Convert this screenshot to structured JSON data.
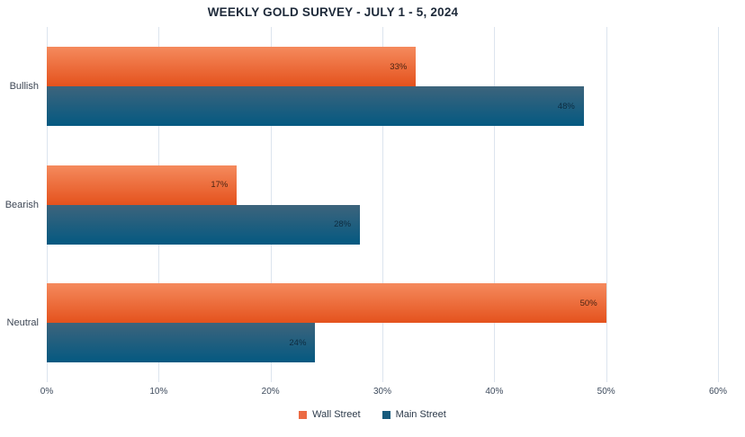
{
  "chart_data": {
    "type": "bar",
    "orientation": "horizontal",
    "title": "WEEKLY GOLD SURVEY - JULY 1 - 5, 2024",
    "categories": [
      "Bullish",
      "Bearish",
      "Neutral"
    ],
    "series": [
      {
        "name": "Wall Street",
        "values": [
          33,
          17,
          50
        ],
        "color_top": "#f58a5d",
        "color_bottom": "#e4521d",
        "legend_color": "#ec6a43",
        "value_label_color": "#4a2413"
      },
      {
        "name": "Main Street",
        "values": [
          48,
          28,
          24
        ],
        "color_top": "#3d647c",
        "color_bottom": "#045981",
        "legend_color": "#155a7c",
        "value_label_color": "#0d2c40"
      }
    ],
    "xlim": [
      0,
      60
    ],
    "x_ticks": [
      "0%",
      "10%",
      "20%",
      "30%",
      "40%",
      "50%",
      "60%"
    ],
    "value_label_format": "{value}%",
    "grid": "vertical",
    "legend_position": "bottom",
    "colors": {
      "background": "#ffffff",
      "gridline": "#dce4ee",
      "title_text": "#1e2a3a",
      "axis_text": "#3d4a5c",
      "category_text": "#3d4654"
    }
  }
}
